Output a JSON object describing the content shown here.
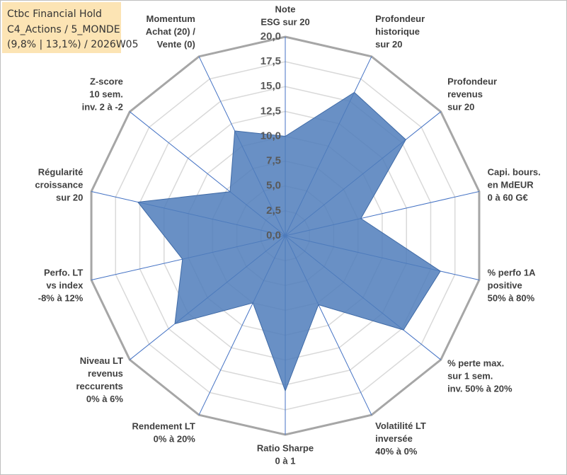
{
  "chart_data": {
    "type": "radar",
    "title": [
      "Ctbc Financial Hold",
      "C4_Actions / 5_MONDE",
      "(9,8% | 13,1%) / 2026W05"
    ],
    "categories": [
      [
        "Note",
        "ESG sur 20"
      ],
      [
        "Profondeur",
        "historique",
        "sur 20"
      ],
      [
        "Profondeur",
        "revenus",
        "sur 20"
      ],
      [
        "Capi. bours.",
        "en MdEUR",
        "0 à 60 G€"
      ],
      [
        "% perfo 1A",
        "positive",
        "50% à 80%"
      ],
      [
        "% perte max.",
        "sur 1 sem.",
        "inv. 50% à 20%"
      ],
      [
        "Volatilité LT",
        "inversée",
        "40% à 0%"
      ],
      [
        "Ratio Sharpe",
        "0 à 1"
      ],
      [
        "Rendement LT",
        "0% à 20%"
      ],
      [
        "Niveau LT",
        "revenus",
        "reccurents",
        "0% à 6%"
      ],
      [
        "Perfo. LT",
        "vs index",
        "-8% à 12%"
      ],
      [
        "Régularité",
        "croissance",
        "sur 20"
      ],
      [
        "Z-score",
        "10 sem.",
        "inv. 2 à -2"
      ],
      [
        "Momentum",
        "Achat (20) /",
        "Vente (0)"
      ]
    ],
    "values": [
      10.0,
      16.0,
      15.5,
      7.8,
      16.0,
      15.2,
      7.7,
      15.6,
      7.5,
      14.2,
      10.6,
      15.2,
      7.1,
      11.7
    ],
    "color": "#4f7dbb",
    "ylim": [
      0,
      20
    ],
    "yticks": [
      {
        "value": 0,
        "label": "0,0"
      },
      {
        "value": 2.5,
        "label": "2,5"
      },
      {
        "value": 5,
        "label": "5,0"
      },
      {
        "value": 7.5,
        "label": "7,5"
      },
      {
        "value": 10,
        "label": "10,0"
      },
      {
        "value": 12.5,
        "label": "12,5"
      },
      {
        "value": 15,
        "label": "15,0"
      },
      {
        "value": 17.5,
        "label": "17,5"
      },
      {
        "value": 20,
        "label": "20,0"
      }
    ],
    "grid": true
  }
}
